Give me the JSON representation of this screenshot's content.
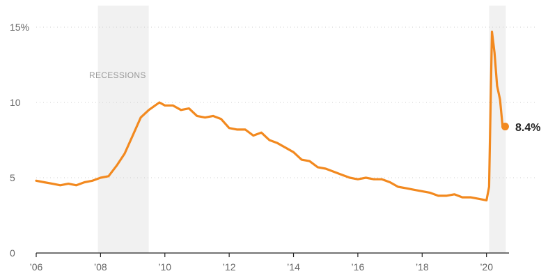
{
  "chart_data": {
    "type": "line",
    "title": "",
    "xlabel": "",
    "ylabel": "",
    "xlim": [
      2006,
      2020.7
    ],
    "ylim": [
      0,
      16
    ],
    "grid": true,
    "y_ticks": [
      {
        "value": 15,
        "label": "15%"
      },
      {
        "value": 10,
        "label": "10"
      },
      {
        "value": 5,
        "label": "5"
      },
      {
        "value": 0,
        "label": "0"
      }
    ],
    "x_ticks": [
      {
        "value": 2006,
        "label": "’06"
      },
      {
        "value": 2008,
        "label": "’08"
      },
      {
        "value": 2010,
        "label": "’10"
      },
      {
        "value": 2012,
        "label": "’12"
      },
      {
        "value": 2014,
        "label": "’14"
      },
      {
        "value": 2016,
        "label": "’16"
      },
      {
        "value": 2018,
        "label": "’18"
      },
      {
        "value": 2020,
        "label": "’20"
      }
    ],
    "recessions": [
      {
        "start": 2007.92,
        "end": 2009.5
      },
      {
        "start": 2020.08,
        "end": 2020.6
      }
    ],
    "recession_label": "RECESSIONS",
    "series": [
      {
        "color": "#f2891f",
        "end_label": "8.4%",
        "x": [
          2006.0,
          2006.25,
          2006.5,
          2006.75,
          2007.0,
          2007.25,
          2007.5,
          2007.75,
          2008.0,
          2008.25,
          2008.5,
          2008.75,
          2009.0,
          2009.25,
          2009.5,
          2009.83,
          2010.0,
          2010.25,
          2010.5,
          2010.75,
          2011.0,
          2011.25,
          2011.5,
          2011.75,
          2012.0,
          2012.25,
          2012.5,
          2012.75,
          2013.0,
          2013.25,
          2013.5,
          2013.75,
          2014.0,
          2014.25,
          2014.5,
          2014.75,
          2015.0,
          2015.25,
          2015.5,
          2015.75,
          2016.0,
          2016.25,
          2016.5,
          2016.75,
          2017.0,
          2017.25,
          2017.5,
          2017.75,
          2018.0,
          2018.25,
          2018.5,
          2018.75,
          2019.0,
          2019.25,
          2019.5,
          2019.75,
          2020.0,
          2020.08,
          2020.17,
          2020.25,
          2020.33,
          2020.42,
          2020.5,
          2020.58
        ],
        "y": [
          4.8,
          4.7,
          4.6,
          4.5,
          4.6,
          4.5,
          4.7,
          4.8,
          5.0,
          5.1,
          5.8,
          6.6,
          7.8,
          9.0,
          9.5,
          10.0,
          9.8,
          9.8,
          9.5,
          9.6,
          9.1,
          9.0,
          9.1,
          8.9,
          8.3,
          8.2,
          8.2,
          7.8,
          8.0,
          7.5,
          7.3,
          7.0,
          6.7,
          6.2,
          6.1,
          5.7,
          5.6,
          5.4,
          5.2,
          5.0,
          4.9,
          5.0,
          4.9,
          4.9,
          4.7,
          4.4,
          4.3,
          4.2,
          4.1,
          4.0,
          3.8,
          3.8,
          3.9,
          3.7,
          3.7,
          3.6,
          3.5,
          4.4,
          14.7,
          13.3,
          11.1,
          10.2,
          8.4,
          8.4
        ]
      }
    ]
  }
}
